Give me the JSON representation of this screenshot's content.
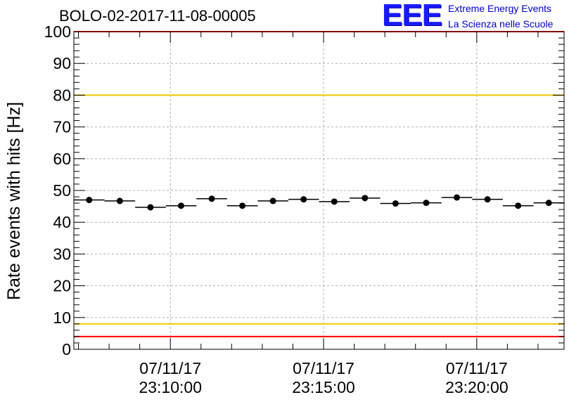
{
  "header": {
    "title": "BOLO-02-2017-11-08-00005",
    "logo_text": "EEE",
    "logo_line1": "Extreme Energy Events",
    "logo_line2": "La Scienza nelle Scuole"
  },
  "colors": {
    "logo": "#1a1aff",
    "logo_caption": "#0000cc",
    "red_limit": "#ff0000",
    "yellow_limit": "#f0c800",
    "grid": "#b0b0b0",
    "markers": "#000000"
  },
  "chart_data": {
    "type": "scatter",
    "ylabel": "Rate events with hits [Hz]",
    "ylim": [
      0,
      100
    ],
    "yticks": [
      0,
      10,
      20,
      30,
      40,
      50,
      60,
      70,
      80,
      90,
      100
    ],
    "x_time_range": [
      "23:06:51",
      "23:22:51"
    ],
    "xtick_labels": [
      {
        "time": "23:10:00",
        "date": "07/11/17",
        "label": "23:10:00"
      },
      {
        "time": "23:15:00",
        "date": "07/11/17",
        "label": "23:15:00"
      },
      {
        "time": "23:20:00",
        "date": "07/11/17",
        "label": "23:20:00"
      }
    ],
    "bin_width_min": 1,
    "grid": true,
    "points": [
      {
        "t": "23:07:21",
        "y": 47.0
      },
      {
        "t": "23:08:21",
        "y": 46.7
      },
      {
        "t": "23:09:21",
        "y": 44.7
      },
      {
        "t": "23:10:21",
        "y": 45.2
      },
      {
        "t": "23:11:21",
        "y": 47.4
      },
      {
        "t": "23:12:21",
        "y": 45.2
      },
      {
        "t": "23:13:21",
        "y": 46.7
      },
      {
        "t": "23:14:21",
        "y": 47.2
      },
      {
        "t": "23:15:21",
        "y": 46.5
      },
      {
        "t": "23:16:21",
        "y": 47.6
      },
      {
        "t": "23:17:21",
        "y": 45.9
      },
      {
        "t": "23:18:21",
        "y": 46.1
      },
      {
        "t": "23:19:21",
        "y": 47.8
      },
      {
        "t": "23:20:21",
        "y": 47.2
      },
      {
        "t": "23:21:21",
        "y": 45.2
      },
      {
        "t": "23:22:21",
        "y": 46.1
      }
    ],
    "reference_lines": [
      {
        "y": 100,
        "color": "red"
      },
      {
        "y": 80,
        "color": "yellow"
      },
      {
        "y": 8,
        "color": "yellow"
      },
      {
        "y": 4,
        "color": "red"
      }
    ]
  }
}
